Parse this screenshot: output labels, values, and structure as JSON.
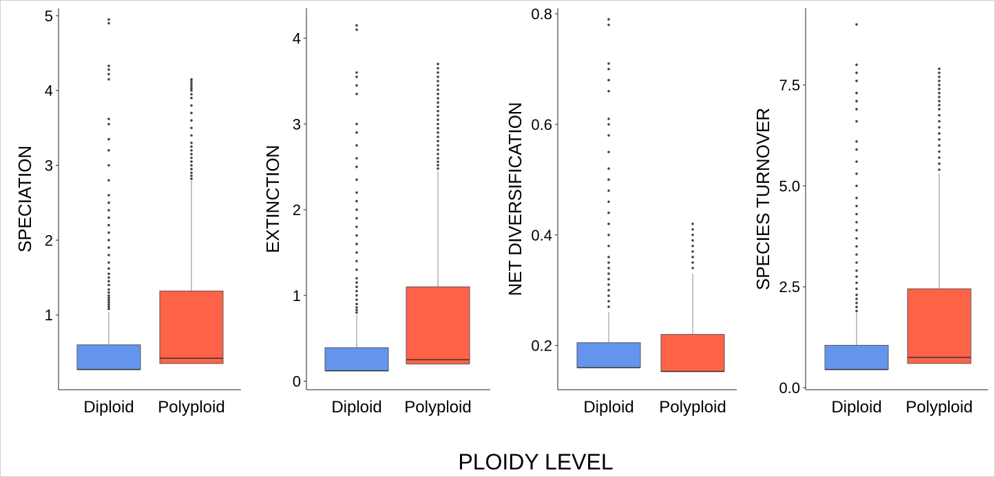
{
  "xlabel": "PLOIDY LEVEL",
  "chart_data": [
    {
      "type": "box",
      "ylabel": "SPECIATION",
      "categories": [
        "Diploid",
        "Polyploid"
      ],
      "yticks": [
        1,
        2,
        3,
        4,
        5
      ],
      "ylim": [
        0.0,
        5.1
      ],
      "boxes": [
        {
          "name": "Diploid",
          "color": "#6495ED",
          "q1": 0.27,
          "median": 0.27,
          "q3": 0.6,
          "whisker_high": 1.04,
          "outliers": [
            1.08,
            1.11,
            1.14,
            1.17,
            1.2,
            1.23,
            1.26,
            1.3,
            1.34,
            1.4,
            1.45,
            1.5,
            1.55,
            1.62,
            1.7,
            1.8,
            1.9,
            2.0,
            2.1,
            2.2,
            2.3,
            2.4,
            2.5,
            2.6,
            2.8,
            3.0,
            3.2,
            3.35,
            3.55,
            3.62,
            4.15,
            4.22,
            4.28,
            4.33,
            4.9,
            4.95
          ]
        },
        {
          "name": "Polyploid",
          "color": "#FF6347",
          "q1": 0.35,
          "median": 0.42,
          "q3": 1.32,
          "whisker_high": 2.8,
          "outliers": [
            2.82,
            2.86,
            2.9,
            2.95,
            3.0,
            3.05,
            3.1,
            3.15,
            3.2,
            3.25,
            3.3,
            3.4,
            3.5,
            3.6,
            3.7,
            3.8,
            3.9,
            3.95,
            4.0,
            4.03,
            4.06,
            4.09,
            4.12,
            4.15
          ]
        }
      ]
    },
    {
      "type": "box",
      "ylabel": "EXTINCTION",
      "categories": [
        "Diploid",
        "Polyploid"
      ],
      "yticks": [
        0,
        1,
        2,
        3,
        4
      ],
      "ylim": [
        -0.1,
        4.35
      ],
      "boxes": [
        {
          "name": "Diploid",
          "color": "#6495ED",
          "q1": 0.12,
          "median": 0.12,
          "q3": 0.39,
          "whisker_high": 0.77,
          "outliers": [
            0.8,
            0.83,
            0.86,
            0.9,
            0.95,
            1.0,
            1.05,
            1.1,
            1.15,
            1.2,
            1.3,
            1.4,
            1.5,
            1.6,
            1.7,
            1.8,
            1.9,
            2.0,
            2.1,
            2.2,
            2.35,
            2.5,
            2.6,
            2.75,
            2.9,
            3.0,
            3.35,
            3.45,
            3.55,
            3.6,
            4.1,
            4.15
          ]
        },
        {
          "name": "Polyploid",
          "color": "#FF6347",
          "q1": 0.2,
          "median": 0.25,
          "q3": 1.1,
          "whisker_high": 2.45,
          "outliers": [
            2.48,
            2.52,
            2.56,
            2.6,
            2.65,
            2.7,
            2.75,
            2.8,
            2.85,
            2.9,
            2.95,
            3.0,
            3.05,
            3.1,
            3.15,
            3.2,
            3.25,
            3.3,
            3.35,
            3.4,
            3.45,
            3.5,
            3.55,
            3.6,
            3.65,
            3.7
          ]
        }
      ]
    },
    {
      "type": "box",
      "ylabel": "NET DIVERSIFICATION",
      "categories": [
        "Diploid",
        "Polyploid"
      ],
      "yticks": [
        0.2,
        0.4,
        0.6,
        0.8
      ],
      "ytick_labels": [
        "0.2",
        "0.4",
        "0.6",
        "0.8"
      ],
      "ylim": [
        0.12,
        0.81
      ],
      "boxes": [
        {
          "name": "Diploid",
          "color": "#6495ED",
          "q1": 0.16,
          "median": 0.16,
          "q3": 0.205,
          "whisker_high": 0.26,
          "outliers": [
            0.27,
            0.28,
            0.29,
            0.3,
            0.31,
            0.32,
            0.33,
            0.34,
            0.35,
            0.36,
            0.38,
            0.4,
            0.42,
            0.44,
            0.46,
            0.48,
            0.5,
            0.52,
            0.55,
            0.58,
            0.6,
            0.61,
            0.66,
            0.68,
            0.7,
            0.71,
            0.78,
            0.79
          ]
        },
        {
          "name": "Polyploid",
          "color": "#FF6347",
          "q1": 0.153,
          "median": 0.153,
          "q3": 0.22,
          "whisker_high": 0.33,
          "outliers": [
            0.34,
            0.35,
            0.36,
            0.37,
            0.38,
            0.39,
            0.4,
            0.41,
            0.42
          ]
        }
      ]
    },
    {
      "type": "box",
      "ylabel": "SPECIES TURNOVER",
      "categories": [
        "Diploid",
        "Polyploid"
      ],
      "yticks": [
        0.0,
        2.5,
        5.0,
        7.5
      ],
      "ytick_labels": [
        "0.0",
        "2.5",
        "5.0",
        "7.5"
      ],
      "ylim": [
        -0.05,
        9.4
      ],
      "boxes": [
        {
          "name": "Diploid",
          "color": "#6495ED",
          "q1": 0.45,
          "median": 0.45,
          "q3": 1.05,
          "whisker_high": 1.85,
          "outliers": [
            1.9,
            2.0,
            2.1,
            2.2,
            2.3,
            2.45,
            2.6,
            2.75,
            2.9,
            3.1,
            3.3,
            3.5,
            3.7,
            3.9,
            4.1,
            4.3,
            4.5,
            4.7,
            5.0,
            5.3,
            5.6,
            5.9,
            6.1,
            6.6,
            6.9,
            7.1,
            7.3,
            7.6,
            7.8,
            8.0,
            9.0
          ]
        },
        {
          "name": "Polyploid",
          "color": "#FF6347",
          "q1": 0.6,
          "median": 0.75,
          "q3": 2.45,
          "whisker_high": 5.3,
          "outliers": [
            5.4,
            5.55,
            5.7,
            5.85,
            6.0,
            6.15,
            6.3,
            6.45,
            6.6,
            6.75,
            6.9,
            7.0,
            7.1,
            7.2,
            7.3,
            7.4,
            7.5,
            7.6,
            7.7,
            7.8,
            7.9
          ]
        }
      ]
    }
  ]
}
